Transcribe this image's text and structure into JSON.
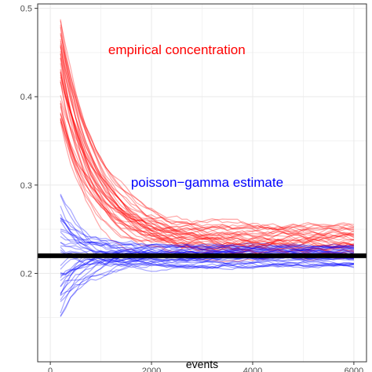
{
  "chart_data": {
    "type": "line",
    "title": "",
    "xlabel": "events",
    "ylabel": "",
    "xlim": [
      -250,
      6250
    ],
    "ylim": [
      0.1,
      0.505
    ],
    "x_ticks": [
      0,
      2000,
      4000,
      6000
    ],
    "x_tick_labels": [
      "0",
      "2000",
      "4000",
      "6000"
    ],
    "y_ticks": [
      0.2,
      0.3,
      0.4,
      0.5
    ],
    "y_tick_labels": [
      "0.2",
      "0.3",
      "0.4",
      "0.5"
    ],
    "grid": true,
    "x_range": [
      200,
      6000
    ],
    "colors": {
      "empirical": "#ff0000",
      "poisson_gamma": "#0000ff",
      "reference": "#000000",
      "grid": "#ebebeb"
    },
    "annotations": [
      {
        "text": "empirical concentration",
        "x": 2500,
        "y": 0.448,
        "color": "#ff0000"
      },
      {
        "text": "poisson−gamma estimate",
        "x": 3100,
        "y": 0.298,
        "color": "#0000ff"
      }
    ],
    "reference_line": {
      "y": 0.22,
      "color": "#000000"
    },
    "series_groups": [
      {
        "id": "empirical",
        "color": "#ff0000",
        "opacity": 0.35,
        "model": "decay",
        "count": 40,
        "start_range": [
          0.37,
          0.49
        ],
        "end_range": [
          0.218,
          0.255
        ],
        "decay_scale": 650
      },
      {
        "id": "poisson_gamma",
        "color": "#0000ff",
        "opacity": 0.35,
        "model": "converge",
        "count": 40,
        "start_range": [
          0.14,
          0.29
        ],
        "center": 0.22,
        "end_spread": 0.012
      }
    ]
  }
}
